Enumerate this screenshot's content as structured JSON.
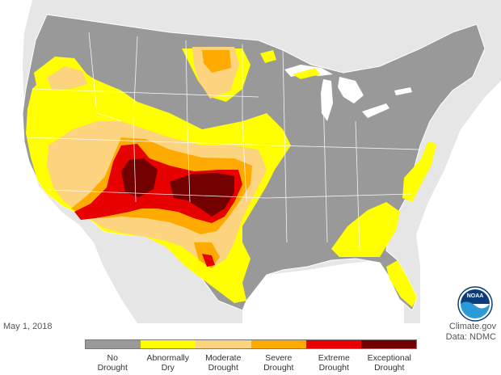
{
  "date": "May 1, 2018",
  "credit": {
    "line1": "Climate.gov",
    "line2": "Data: NDMC"
  },
  "logo_text": "NOAA",
  "colors": {
    "background_land": "#e6e6e6",
    "ocean": "#ffffff",
    "state_border": "#ffffff"
  },
  "legend": [
    {
      "line1": "No",
      "line2": "Drought",
      "color": "#999999"
    },
    {
      "line1": "Abnormally",
      "line2": "Dry",
      "color": "#ffff00"
    },
    {
      "line1": "Moderate",
      "line2": "Drought",
      "color": "#fcd37f"
    },
    {
      "line1": "Severe",
      "line2": "Drought",
      "color": "#ffaa00"
    },
    {
      "line1": "Extreme",
      "line2": "Drought",
      "color": "#e60000"
    },
    {
      "line1": "Exceptional",
      "line2": "Drought",
      "color": "#730000"
    }
  ]
}
